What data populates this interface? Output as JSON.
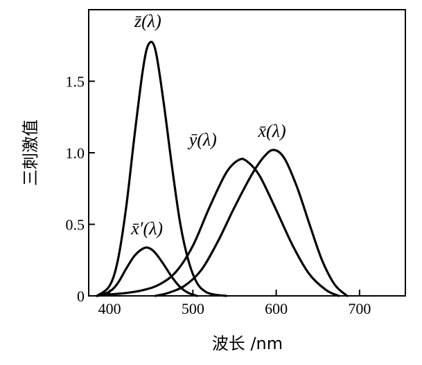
{
  "chart_data": {
    "type": "line",
    "title": "",
    "xlabel": "波长 /nm",
    "ylabel": "三刺激值",
    "xlim": [
      375,
      755
    ],
    "ylim": [
      0,
      2.0
    ],
    "x_ticks": [
      {
        "value": 400,
        "label": "400"
      },
      {
        "value": 500,
        "label": "500"
      },
      {
        "value": 600,
        "label": "600"
      },
      {
        "value": 700,
        "label": "700"
      }
    ],
    "y_ticks": [
      {
        "value": 0,
        "label": "0"
      },
      {
        "value": 0.5,
        "label": "0.5"
      },
      {
        "value": 1.0,
        "label": "1.0"
      },
      {
        "value": 1.5,
        "label": "1.5"
      }
    ],
    "grid": false,
    "line_color": "#000000",
    "series": [
      {
        "name": "z̄(λ)",
        "label_at": [
          446,
          1.88
        ],
        "points": [
          [
            385,
            0.0
          ],
          [
            400,
            0.07
          ],
          [
            410,
            0.25
          ],
          [
            420,
            0.62
          ],
          [
            430,
            1.12
          ],
          [
            440,
            1.58
          ],
          [
            447,
            1.76
          ],
          [
            455,
            1.72
          ],
          [
            465,
            1.35
          ],
          [
            475,
            0.9
          ],
          [
            485,
            0.5
          ],
          [
            495,
            0.24
          ],
          [
            505,
            0.09
          ],
          [
            515,
            0.03
          ],
          [
            525,
            0.01
          ],
          [
            540,
            0.0
          ]
        ]
      },
      {
        "name": "x̄′(λ)",
        "label_at": [
          445,
          0.43
        ],
        "points": [
          [
            385,
            0.0
          ],
          [
            400,
            0.03
          ],
          [
            410,
            0.09
          ],
          [
            420,
            0.19
          ],
          [
            430,
            0.28
          ],
          [
            440,
            0.33
          ],
          [
            447,
            0.335
          ],
          [
            455,
            0.3
          ],
          [
            465,
            0.22
          ],
          [
            475,
            0.13
          ],
          [
            485,
            0.06
          ],
          [
            495,
            0.02
          ],
          [
            505,
            0.0
          ]
        ]
      },
      {
        "name": "ȳ(λ)",
        "label_at": [
          512,
          1.05
        ],
        "points": [
          [
            385,
            0.0
          ],
          [
            400,
            0.01
          ],
          [
            420,
            0.02
          ],
          [
            440,
            0.04
          ],
          [
            460,
            0.08
          ],
          [
            480,
            0.17
          ],
          [
            500,
            0.35
          ],
          [
            520,
            0.62
          ],
          [
            540,
            0.86
          ],
          [
            555,
            0.95
          ],
          [
            565,
            0.94
          ],
          [
            580,
            0.84
          ],
          [
            600,
            0.6
          ],
          [
            620,
            0.35
          ],
          [
            640,
            0.15
          ],
          [
            660,
            0.04
          ],
          [
            675,
            0.0
          ]
        ]
      },
      {
        "name": "x̄(λ)",
        "label_at": [
          595,
          1.11
        ],
        "points": [
          [
            455,
            0.0
          ],
          [
            470,
            0.02
          ],
          [
            490,
            0.07
          ],
          [
            510,
            0.18
          ],
          [
            530,
            0.38
          ],
          [
            550,
            0.62
          ],
          [
            570,
            0.84
          ],
          [
            585,
            0.97
          ],
          [
            597,
            1.02
          ],
          [
            610,
            0.96
          ],
          [
            625,
            0.76
          ],
          [
            640,
            0.5
          ],
          [
            655,
            0.25
          ],
          [
            670,
            0.08
          ],
          [
            685,
            0.0
          ]
        ]
      }
    ]
  }
}
